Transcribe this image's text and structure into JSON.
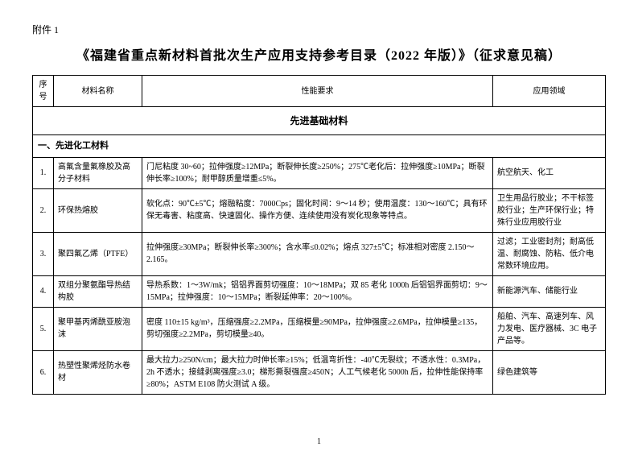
{
  "attachment_label": "附件 1",
  "title": "《福建省重点新材料首批次生产应用支持参考目录（2022 年版）》（征求意见稿）",
  "headers": {
    "num": "序号",
    "name": "材料名称",
    "req": "性能要求",
    "app": "应用领域"
  },
  "section_header": "先进基础材料",
  "sub_header": "一、先进化工材料",
  "rows": [
    {
      "n": "1.",
      "name": "高氟含量氟橡胶及高分子材料",
      "req": "门尼粘度 30~60；拉伸强度≥12MPa；断裂伸长度≥250%；275℃老化后：拉伸强度≥10MPa；断裂伸长率≥100%；耐甲醇质量增重≤5%。",
      "app": "航空航天、化工"
    },
    {
      "n": "2.",
      "name": "环保热熔胶",
      "req": "软化点：90℃±5℃；熔融粘度：7000Cps；固化时间：9～14 秒；使用温度：130～160℃；具有环保无毒害、粘度高、快速固化、操作方便、连续使用没有炭化现象等特点。",
      "app": "卫生用品行胶业；不干标签胶行业；生产环保行业；特殊行业应用胶行业"
    },
    {
      "n": "3.",
      "name": "聚四氟乙烯（PTFE）",
      "req": "拉伸强度≥30MPa；断裂伸长率≥300%；含水率≤0.02%；熔点 327±5℃；标准相对密度 2.150～2.165。",
      "app": "过滤；工业密封剂；耐高低温、耐腐蚀、防粘、低介电常数环境应用。"
    },
    {
      "n": "4.",
      "name": "双组分聚氨酯导热结构胶",
      "req": "导热系数：1～3W/mk；铝铝界面剪切强度：10～18MPa；双 85 老化 1000h 后铝铝界面剪切：9～15MPa；拉伸强度：10～15MPa；断裂延伸率：20～100%。",
      "app": "新能源汽车、储能行业"
    },
    {
      "n": "5.",
      "name": "聚甲基丙烯酰亚胺泡沫",
      "req": "密度 110±15 kg/m³，压缩强度≥2.2MPa，压缩模量≥90MPa，拉伸强度≥2.6MPa，拉伸模量≥135，剪切强度≥2.2MPa，剪切模量≥40。",
      "app": "船舶、汽车、高速列车、风力发电、医疗器械、3C 电子产品等。"
    },
    {
      "n": "6.",
      "name": "热塑性聚烯烃防水卷材",
      "req": "最大拉力≥250N/cm；最大拉力时伸长率≥15%；低温弯折性：-40℃无裂纹；不透水性：0.3MPa，2h 不透水；接缝剥离强度≥3.0；梯形撕裂强度≥450N；人工气候老化 5000h 后，拉伸性能保持率≥80%；ASTM E108 防火测试 A 级。",
      "app": "绿色建筑等"
    }
  ],
  "page_number": "1"
}
